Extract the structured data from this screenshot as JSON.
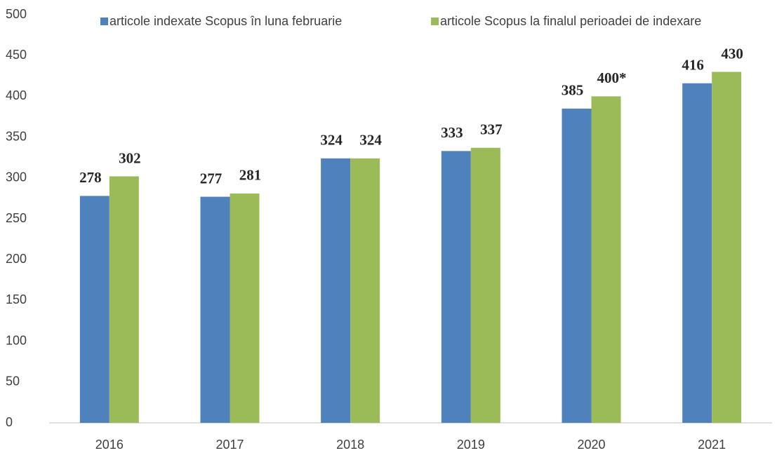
{
  "chart_data": {
    "type": "bar",
    "categories": [
      "2016",
      "2017",
      "2018",
      "2019",
      "2020",
      "2021"
    ],
    "series": [
      {
        "name": "articole indexate Scopus în luna februarie",
        "color": "#4f81bd",
        "values": [
          278,
          277,
          324,
          333,
          385,
          416
        ]
      },
      {
        "name": "articole Scopus la finalul perioadei de indexare",
        "color": "#9bbb59",
        "values": [
          302,
          281,
          324,
          337,
          400,
          430
        ],
        "value_labels": [
          "302",
          "281",
          "324",
          "337",
          "400*",
          "430"
        ]
      }
    ],
    "ylim": [
      0,
      500
    ],
    "yticks": [
      0,
      50,
      100,
      150,
      200,
      250,
      300,
      350,
      400,
      450,
      500
    ],
    "grid": false,
    "legend": "top"
  }
}
